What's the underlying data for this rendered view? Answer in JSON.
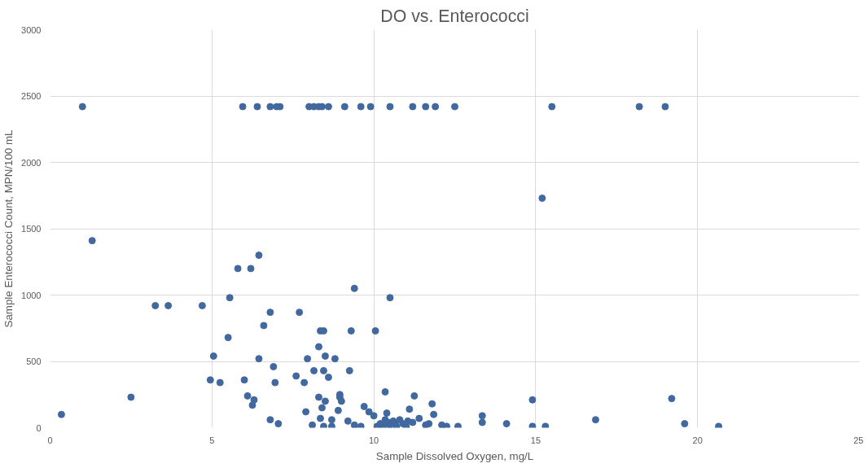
{
  "chart_data": {
    "type": "scatter",
    "title": "DO vs. Enterococci",
    "xlabel": "Sample Dissolved Oxygen, mg/L",
    "ylabel": "Sample Enterococci Count, MPN/100 mL",
    "xlim": [
      0,
      25
    ],
    "ylim": [
      0,
      3000
    ],
    "xticks": [
      0,
      5,
      10,
      15,
      20,
      25
    ],
    "yticks": [
      0,
      500,
      1000,
      1500,
      2000,
      2500,
      3000
    ],
    "grid": true,
    "marker": "circle",
    "series": [
      {
        "color": "#41699f",
        "x": [
          1.0,
          5.95,
          6.4,
          6.8,
          7.0,
          7.1,
          8.0,
          8.15,
          8.3,
          8.4,
          8.6,
          9.1,
          9.6,
          9.9,
          10.5,
          11.2,
          11.6,
          11.9,
          12.5,
          15.5,
          18.2,
          19.0,
          1.3,
          15.2,
          0.35,
          2.5,
          3.25,
          3.65,
          4.7,
          5.55,
          5.8,
          6.2,
          6.45,
          5.5,
          6.6,
          6.8,
          7.7,
          9.4,
          10.5,
          5.05,
          4.95,
          5.25,
          6.0,
          6.1,
          6.25,
          6.3,
          6.45,
          6.8,
          6.9,
          6.95,
          7.05,
          7.6,
          7.85,
          7.9,
          7.95,
          8.15,
          8.3,
          8.35,
          8.45,
          8.5,
          8.45,
          8.6,
          8.8,
          9.3,
          9.25,
          10.05,
          8.3,
          8.4,
          8.35,
          8.5,
          8.7,
          8.7,
          8.9,
          8.95,
          8.95,
          9.0,
          9.2,
          9.6,
          9.7,
          9.85,
          10.0,
          10.1,
          10.3,
          10.35,
          10.35,
          10.4,
          10.5,
          10.6,
          10.7,
          10.8,
          10.9,
          11.0,
          11.2,
          11.1,
          11.25,
          11.4,
          11.8,
          11.85,
          11.6,
          11.7,
          12.1,
          12.25,
          12.6,
          13.35,
          13.35,
          14.1,
          14.9,
          14.9,
          15.3,
          16.85,
          19.2,
          19.6,
          20.65,
          8.45,
          10.2,
          10.45,
          10.65,
          11.05,
          9.4,
          8.1
        ],
        "values": [
          2420,
          2420,
          2420,
          2420,
          2420,
          2420,
          2420,
          2420,
          2420,
          2420,
          2420,
          2420,
          2420,
          2420,
          2420,
          2420,
          2420,
          2420,
          2420,
          2420,
          2420,
          2420,
          1410,
          1730,
          100,
          230,
          920,
          920,
          920,
          980,
          1200,
          1200,
          1300,
          680,
          770,
          870,
          870,
          1050,
          980,
          540,
          360,
          340,
          360,
          240,
          170,
          210,
          520,
          60,
          460,
          340,
          30,
          390,
          340,
          120,
          520,
          430,
          610,
          730,
          730,
          540,
          430,
          380,
          520,
          730,
          430,
          730,
          230,
          150,
          70,
          200,
          60,
          10,
          130,
          230,
          250,
          200,
          50,
          10,
          160,
          120,
          90,
          10,
          10,
          270,
          60,
          110,
          20,
          50,
          10,
          60,
          30,
          10,
          40,
          140,
          240,
          70,
          180,
          100,
          20,
          30,
          20,
          10,
          10,
          90,
          40,
          30,
          210,
          10,
          10,
          60,
          220,
          30,
          10,
          10,
          30,
          40,
          30,
          50,
          20,
          20
        ]
      }
    ]
  }
}
